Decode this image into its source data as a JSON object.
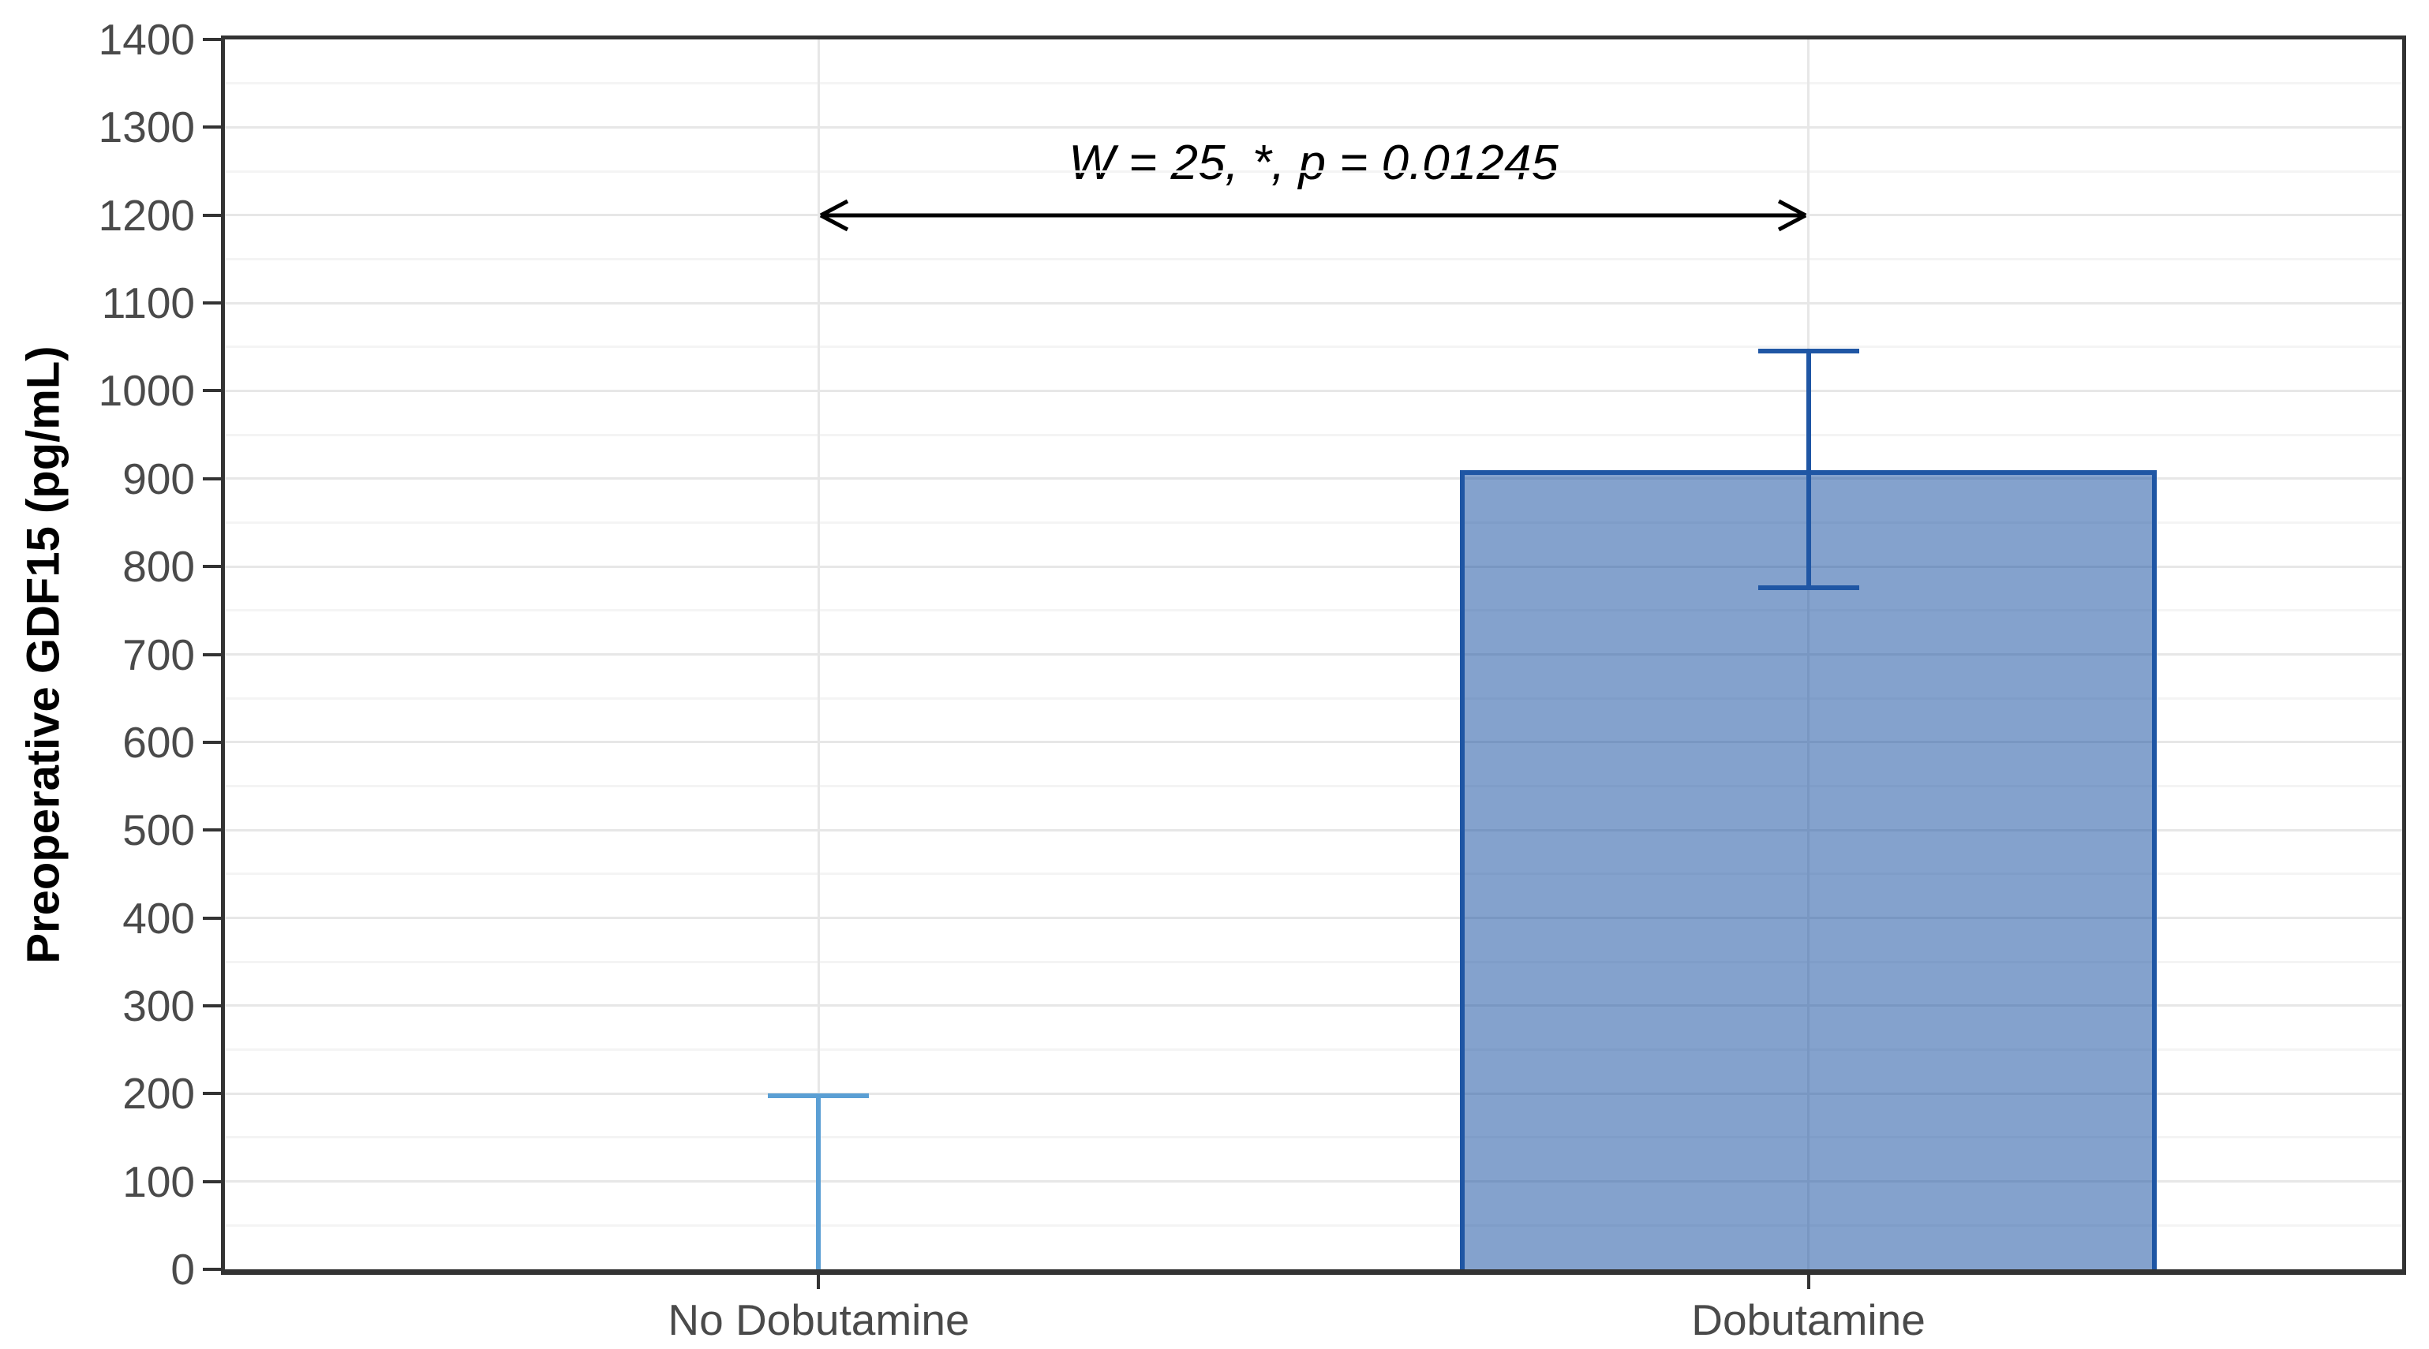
{
  "figure": {
    "background": "#FFFFFF"
  },
  "chart_data": {
    "type": "bar",
    "title": "",
    "xlabel": "",
    "ylabel": "Preoperative GDF15 (pg/mL)",
    "categories": [
      "No Dobutamine",
      "Dobutamine"
    ],
    "values": [
      0,
      910
    ],
    "error_bars": [
      {
        "low": 0,
        "high": 198,
        "low_cap": false,
        "high_cap": true
      },
      {
        "low": 776,
        "high": 1045,
        "low_cap": true,
        "high_cap": true
      }
    ],
    "error_colors": [
      "#5B9FD4",
      "#1F56A4"
    ],
    "bar_fill": "rgba(31,86,164,0.55)",
    "bar_border": "#1F56A4",
    "bar_width_frac": 0.32,
    "ylim": [
      0,
      1400
    ],
    "ytick_step": 100,
    "yminor_step": 50,
    "yticklabels": [
      "0",
      "100",
      "200",
      "300",
      "400",
      "500",
      "600",
      "700",
      "800",
      "900",
      "1000",
      "1100",
      "1200",
      "1300",
      "1400"
    ],
    "grid": {
      "major_color": "#E7E7E7",
      "minor_color": "#F4F4F4",
      "grid_on": true
    },
    "axis": {
      "line_color": "#333333",
      "tick_label_color": "#4a4a4a"
    },
    "legend": "none",
    "annotation": {
      "text": "W = 25, *, p = 0.01245",
      "arrow_y": 1200,
      "from_category": 0,
      "to_category": 1,
      "arrow_color": "#000000"
    }
  }
}
